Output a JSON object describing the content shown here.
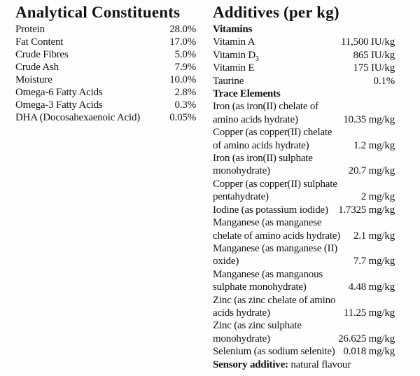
{
  "page": {
    "background_color": "#fefefe",
    "text_color": "#121212"
  },
  "left_column": {
    "title": "Analytical Constituents",
    "rows": [
      {
        "label": "Protein",
        "value": "28.0%"
      },
      {
        "label": "Fat Content",
        "value": "17.0%"
      },
      {
        "label": "Crude Fibres",
        "value": "5.0%"
      },
      {
        "label": "Crude Ash",
        "value": "7.9%"
      },
      {
        "label": "Moisture",
        "value": "10.0%"
      },
      {
        "label": "Omega-6 Fatty Acids",
        "value": "2.8%"
      },
      {
        "label": "Omega-3 Fatty Acids",
        "value": "0.3%"
      },
      {
        "label": "DHA (Docosahexaenoic Acid)",
        "value": "0.05%"
      }
    ]
  },
  "right_column": {
    "title": "Additives (per kg)",
    "sections": [
      {
        "heading": "Vitamins",
        "rows": [
          {
            "lines": [
              "Vitamin A"
            ],
            "value": "11,500 IU/kg"
          },
          {
            "lines": [
              "Vitamin D"
            ],
            "subscript": "3",
            "value": "865 IU/kg"
          },
          {
            "lines": [
              "Vitamin E"
            ],
            "value": "175 IU/kg"
          },
          {
            "lines": [
              "Taurine"
            ],
            "value": "0.1%"
          }
        ]
      },
      {
        "heading": "Trace Elements",
        "rows": [
          {
            "lines": [
              "Iron (as iron(II) chelate of",
              "amino acids hydrate)"
            ],
            "value": "10.35 mg/kg"
          },
          {
            "lines": [
              "Copper (as copper(II) chelate",
              "of amino acids hydrate)"
            ],
            "value": "1.2 mg/kg"
          },
          {
            "lines": [
              "Iron (as iron(II) sulphate",
              "monohydrate)"
            ],
            "value": "20.7 mg/kg"
          },
          {
            "lines": [
              "Copper (as copper(II) sulphate",
              "pentahydrate)"
            ],
            "value": "2 mg/kg"
          },
          {
            "lines": [
              "Iodine (as potassium iodide)"
            ],
            "value": "1.7325 mg/kg"
          },
          {
            "lines": [
              "Manganese (as manganese",
              "chelate of amino acids hydrate)"
            ],
            "value": "2.1 mg/kg"
          },
          {
            "lines": [
              "Manganese (as manganese (II)",
              "oxide)"
            ],
            "value": "7.7 mg/kg"
          },
          {
            "lines": [
              "Manganese (as manganous",
              "sulphate monohydrate)"
            ],
            "value": "4.48 mg/kg"
          },
          {
            "lines": [
              "Zinc (as zinc chelate of amino",
              "acids hydrate)"
            ],
            "value": "11.25 mg/kg"
          },
          {
            "lines": [
              "Zinc (as zinc sulphate",
              "monohydrate)"
            ],
            "value": "26.625 mg/kg"
          },
          {
            "lines": [
              "Selenium (as sodium selenite)"
            ],
            "value": "0.018 mg/kg"
          }
        ]
      }
    ],
    "footer": {
      "bold_label": "Sensory additive:",
      "text": " natural flavour"
    }
  }
}
